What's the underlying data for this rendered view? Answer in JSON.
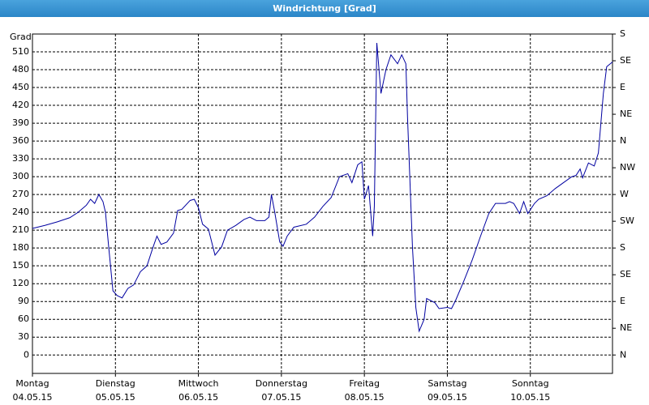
{
  "chart_data": {
    "type": "line",
    "title": "Windrichtung [Grad]",
    "y_label": "Grad",
    "x": [
      0,
      0.15,
      0.3,
      0.45,
      0.55,
      0.65,
      0.7,
      0.75,
      0.8,
      0.85,
      0.88,
      0.92,
      0.97,
      1.02,
      1.08,
      1.15,
      1.22,
      1.3,
      1.38,
      1.45,
      1.5,
      1.55,
      1.62,
      1.7,
      1.75,
      1.8,
      1.9,
      1.95,
      2.0,
      2.05,
      2.12,
      2.2,
      2.28,
      2.35,
      2.45,
      2.55,
      2.62,
      2.7,
      2.8,
      2.85,
      2.88,
      2.92,
      2.98,
      3.02,
      3.07,
      3.15,
      3.3,
      3.4,
      3.5,
      3.6,
      3.7,
      3.8,
      3.85,
      3.92,
      3.97,
      4.0,
      4.05,
      4.1,
      4.12,
      4.15,
      4.2,
      4.26,
      4.32,
      4.4,
      4.45,
      4.5,
      4.52,
      4.58,
      4.62,
      4.66,
      4.72,
      4.75,
      4.85,
      4.9,
      5.0,
      5.05,
      5.1,
      5.2,
      5.3,
      5.4,
      5.5,
      5.58,
      5.7,
      5.75,
      5.8,
      5.87,
      5.92,
      5.97,
      6.05,
      6.1,
      6.2,
      6.3,
      6.4,
      6.5,
      6.55,
      6.6,
      6.63,
      6.7,
      6.77,
      6.82,
      6.88,
      6.92,
      6.99
    ],
    "series": [
      {
        "name": "Windrichtung",
        "color": "#0000a0",
        "values": [
          213,
          218,
          224,
          231,
          240,
          252,
          262,
          255,
          270,
          258,
          240,
          180,
          108,
          100,
          96,
          112,
          118,
          140,
          150,
          180,
          200,
          186,
          190,
          205,
          243,
          245,
          260,
          262,
          248,
          220,
          212,
          168,
          182,
          210,
          218,
          228,
          232,
          226,
          226,
          232,
          270,
          240,
          190,
          183,
          200,
          215,
          220,
          232,
          250,
          265,
          300,
          305,
          290,
          320,
          325,
          262,
          285,
          200,
          250,
          525,
          440,
          480,
          505,
          490,
          505,
          490,
          400,
          180,
          80,
          40,
          60,
          95,
          88,
          78,
          80,
          78,
          92,
          125,
          160,
          200,
          238,
          255,
          255,
          258,
          255,
          238,
          258,
          238,
          255,
          262,
          268,
          280,
          290,
          300,
          302,
          313,
          298,
          323,
          318,
          340,
          440,
          485,
          493
        ]
      }
    ],
    "xlim": [
      0,
      6.99
    ],
    "xticks": [
      {
        "value": 0,
        "label": "Montag"
      },
      {
        "value": 1,
        "label": "Dienstag"
      },
      {
        "value": 2,
        "label": "Mittwoch"
      },
      {
        "value": 3,
        "label": "Donnerstag"
      },
      {
        "value": 4,
        "label": "Freitag"
      },
      {
        "value": 5,
        "label": "Samstag"
      },
      {
        "value": 6,
        "label": "Sonntag"
      }
    ],
    "xtick_dates": [
      "04.05.15",
      "05.05.15",
      "06.05.15",
      "07.05.15",
      "08.05.15",
      "09.05.15",
      "10.05.15"
    ],
    "ylim": [
      -31,
      540
    ],
    "yticks": [
      0,
      30,
      60,
      90,
      120,
      150,
      180,
      210,
      240,
      270,
      300,
      330,
      360,
      390,
      420,
      450,
      480,
      510
    ],
    "y2lim": [
      -31,
      540
    ],
    "y2ticks": [
      {
        "value": 0,
        "label": "N"
      },
      {
        "value": 45,
        "label": "NE"
      },
      {
        "value": 90,
        "label": "E"
      },
      {
        "value": 135,
        "label": "SE"
      },
      {
        "value": 180,
        "label": "S"
      },
      {
        "value": 225,
        "label": "SW"
      },
      {
        "value": 270,
        "label": "W"
      },
      {
        "value": 315,
        "label": "NW"
      },
      {
        "value": 360,
        "label": "N"
      },
      {
        "value": 405,
        "label": "NE"
      },
      {
        "value": 450,
        "label": "E"
      },
      {
        "value": 495,
        "label": "SE"
      },
      {
        "value": 540,
        "label": "S"
      }
    ],
    "grid": true
  }
}
